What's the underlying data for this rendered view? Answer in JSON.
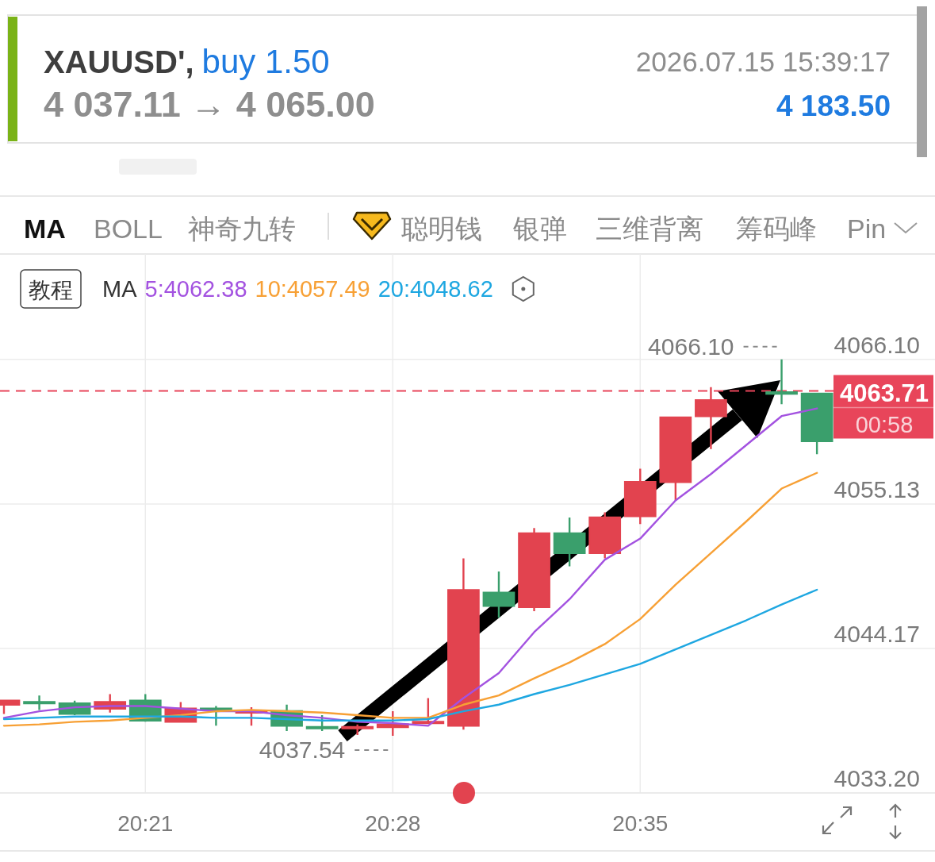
{
  "chart_data": {
    "type": "candlestick",
    "categories": [
      null,
      null,
      null,
      null,
      "20:21",
      null,
      null,
      null,
      null,
      null,
      null,
      "20:28",
      null,
      null,
      null,
      null,
      null,
      null,
      "20:35",
      null,
      null,
      null,
      null,
      null
    ],
    "ohlc": [
      [
        4039.9,
        4040.2,
        4039.2,
        4040.2
      ],
      [
        4040.1,
        4040.6,
        4039.5,
        4040.0
      ],
      [
        4040.0,
        4040.2,
        4039.1,
        4039.2
      ],
      [
        4039.6,
        4040.7,
        4039.3,
        4040.1
      ],
      [
        4040.2,
        4040.7,
        4038.6,
        4038.7
      ],
      [
        4038.6,
        4040.1,
        4038.6,
        4039.6
      ],
      [
        4039.6,
        4039.8,
        4038.3,
        4039.5
      ],
      [
        4039.3,
        4039.7,
        4038.3,
        4039.4
      ],
      [
        4039.4,
        4039.9,
        4037.9,
        4038.3
      ],
      [
        4038.2,
        4039.1,
        4037.9,
        4038.1
      ],
      [
        4038.1,
        4038.4,
        4037.6,
        4038.2
      ],
      [
        4038.2,
        4039.4,
        4037.54,
        4038.4
      ],
      [
        4038.5,
        4040.4,
        4038.5,
        4038.6
      ],
      [
        4038.3,
        4051.0,
        4038.0,
        4048.6
      ],
      [
        4048.4,
        4050.0,
        4046.5,
        4047.4
      ],
      [
        4047.3,
        4053.3,
        4047.0,
        4052.9
      ],
      [
        4052.9,
        4054.1,
        4050.4,
        4051.4
      ],
      [
        4051.4,
        4054.5,
        4051.0,
        4054.1
      ],
      [
        4054.2,
        4057.8,
        4053.6,
        4056.8
      ],
      [
        4056.8,
        4061.7,
        4055.4,
        4061.7
      ],
      [
        4061.8,
        4064.0,
        4059.3,
        4063.0
      ],
      null,
      [
        4063.6,
        4066.1,
        4062.7,
        4063.5
      ],
      [
        4063.5,
        4063.5,
        4058.9,
        4059.9
      ]
    ],
    "colors": [
      "#e2434f",
      "#3a9f6c",
      "#3a9f6c",
      "#e2434f",
      "#3a9f6c",
      "#e2434f",
      "#3a9f6c",
      "#e2434f",
      "#3a9f6c",
      "#3a9f6c",
      "#e2434f",
      "#e2434f",
      "#e2434f",
      "#e2434f",
      "#3a9f6c",
      "#e2434f",
      "#3a9f6c",
      "#e2434f",
      "#e2434f",
      "#e2434f",
      "#e2434f",
      null,
      "#3a9f6c",
      "#3a9f6c"
    ],
    "series": [
      {
        "name": "5:4062.38",
        "type": "line",
        "color": "#a352e0",
        "values": [
          4038.9,
          4039.4,
          4039.7,
          4039.8,
          4039.8,
          4039.6,
          4039.4,
          4039.4,
          4039.1,
          4038.9,
          4038.6,
          4038.5,
          4038.3,
          4040.4,
          4042.3,
          4045.4,
          4047.9,
          4050.9,
          4052.5,
          4055.4,
          4057.4,
          4059.6,
          4061.8,
          4062.38
        ]
      },
      {
        "name": "10:4057.49",
        "type": "line",
        "color": "#f7a035",
        "values": [
          4038.3,
          4038.4,
          4038.6,
          4038.7,
          4038.9,
          4039.1,
          4039.4,
          4039.5,
          4039.4,
          4039.3,
          4039.1,
          4038.9,
          4038.9,
          4039.9,
          4040.6,
          4041.9,
          4043.1,
          4044.5,
          4046.4,
          4049.0,
          4051.4,
          4053.8,
          4056.3,
          4057.49
        ]
      },
      {
        "name": "20:4048.62",
        "type": "line",
        "color": "#1ea7e1",
        "values": [
          4038.8,
          4038.9,
          4039.0,
          4039.0,
          4039.0,
          4039.0,
          4038.9,
          4038.9,
          4038.8,
          4038.7,
          4038.7,
          4038.7,
          4038.8,
          4039.4,
          4039.9,
          4040.7,
          4041.4,
          4042.2,
          4043.0,
          4044.1,
          4045.2,
          4046.3,
          4047.5,
          4048.62
        ]
      }
    ],
    "ylim": [
      4033.2,
      4074.1
    ],
    "yticks": [
      {
        "value": 4066.1,
        "label": "4066.10"
      },
      4055.13,
      4044.17,
      {
        "value": 4033.2,
        "label": "4033.20"
      }
    ],
    "grid": true,
    "legend": "top",
    "legend_title": "MA",
    "ref_lines": [
      {
        "axis": "y",
        "value": 4063.71,
        "label": "4063.71",
        "color": "#e8455a",
        "line_style": "dashed"
      }
    ],
    "annotations": [
      "XAUUSD',",
      "buy 1.50",
      "4 037.11 → 4 065.00",
      "2026.07.15 15:39:17",
      "4 183.50",
      "MA",
      "BOLL",
      "神奇九转",
      "聪明钱",
      "银弹",
      "三维背离",
      "筹码峰",
      "Pin",
      "教程",
      "00:58",
      "4066.10",
      "4037.54"
    ]
  }
}
